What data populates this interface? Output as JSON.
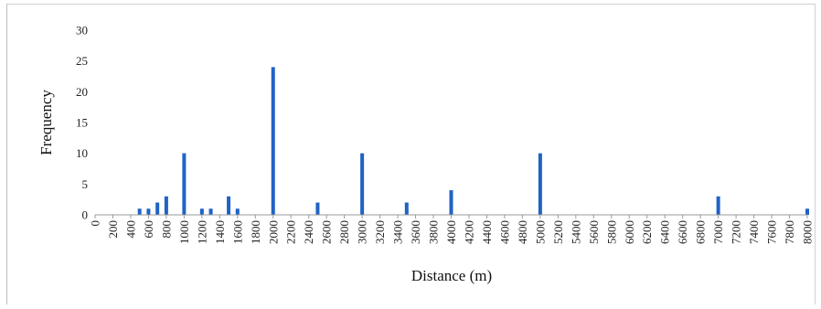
{
  "chart_data": {
    "type": "bar",
    "xlabel": "Distance (m)",
    "ylabel": "Frequency",
    "ylim": [
      0,
      30
    ],
    "y_ticks": [
      "0",
      "5",
      "10",
      "15",
      "20",
      "25",
      "30"
    ],
    "x_range": [
      0,
      8000
    ],
    "x_tick_step": 200,
    "x": [
      500,
      600,
      700,
      800,
      1000,
      1200,
      1300,
      1500,
      1600,
      2000,
      2500,
      3000,
      3500,
      4000,
      5000,
      7000,
      8000
    ],
    "values": [
      1,
      1,
      2,
      3,
      10,
      1,
      1,
      3,
      1,
      24,
      2,
      10,
      2,
      4,
      10,
      3,
      1
    ],
    "bar_color": "#1f63c6",
    "axis_color": "#999999",
    "grid": false,
    "legend": "none"
  }
}
